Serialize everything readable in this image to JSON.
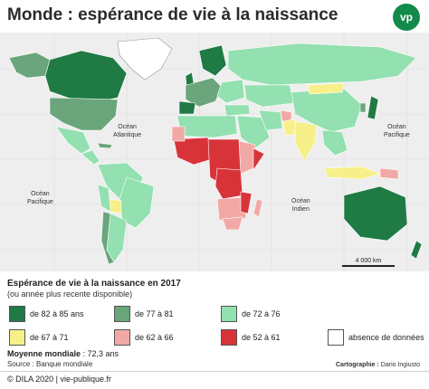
{
  "header": {
    "title": "Monde : espérance de vie à la naissance",
    "logo": "vp"
  },
  "map": {
    "oceans": {
      "atlantic": "Océan\nAtlantique",
      "pacific_west": "Océan\nPacifique",
      "pacific_east": "Océan\nPacifique",
      "indian": "Océan\nIndien"
    },
    "scale_label": "4 000 km"
  },
  "legend": {
    "title": "Espérance de vie à la naissance en 2017",
    "subtitle": "(ou année plus recente disponible)",
    "items": [
      {
        "label": "de 82 à 85 ans",
        "color": "#1f7a44"
      },
      {
        "label": "de 77 à 81",
        "color": "#6aa57b"
      },
      {
        "label": "de 72 à 76",
        "color": "#93e0b0"
      },
      {
        "label": "de 67 à 71",
        "color": "#f7f08a"
      },
      {
        "label": "de 62 à 66",
        "color": "#f2a9a6"
      },
      {
        "label": "de 52 à 61",
        "color": "#d9333a"
      },
      {
        "label": "absence de données",
        "color": "#ffffff"
      }
    ],
    "moyenne_label": "Moyenne mondiale",
    "moyenne_value": ": 72,3 ans",
    "source": "Source : Banque mondiale",
    "carto_label": "Cartographie :",
    "carto_name": "Dario Ingiusto"
  },
  "footer": {
    "text": "© DILA 2020 | vie-publique.fr"
  }
}
